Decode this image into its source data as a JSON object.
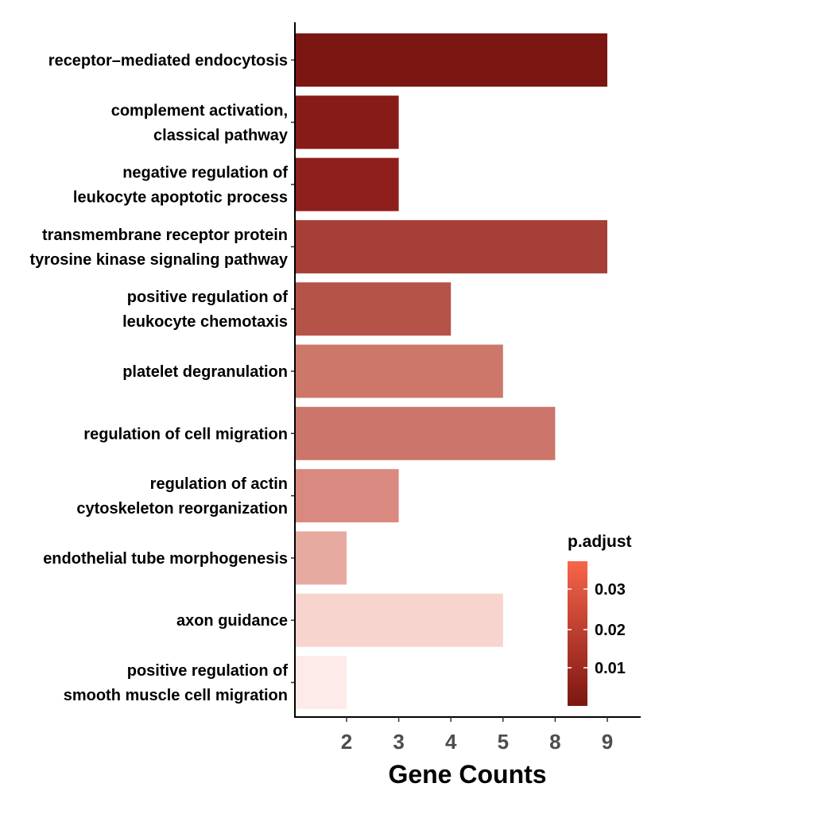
{
  "chart_data": {
    "type": "bar",
    "orientation": "horizontal",
    "xlabel": "Gene Counts",
    "ylabel": "",
    "x_tick_labels": [
      "2",
      "3",
      "4",
      "5",
      "8",
      "9"
    ],
    "categories": [
      [
        "receptor–mediated endocytosis"
      ],
      [
        "complement activation,",
        "classical pathway"
      ],
      [
        "negative regulation of",
        "leukocyte apoptotic process"
      ],
      [
        "transmembrane receptor protein",
        "tyrosine kinase signaling pathway"
      ],
      [
        "positive regulation of",
        "leukocyte chemotaxis"
      ],
      [
        "platelet degranulation"
      ],
      [
        "regulation of cell migration"
      ],
      [
        "regulation of actin",
        "cytoskeleton reorganization"
      ],
      [
        "endothelial tube morphogenesis"
      ],
      [
        "axon guidance"
      ],
      [
        "positive regulation of",
        "smooth muscle cell migration"
      ]
    ],
    "values": [
      9,
      3,
      3,
      9,
      4,
      5,
      8,
      3,
      2,
      5,
      2
    ],
    "bar_colors": [
      "#7c1612",
      "#871b18",
      "#8f1f1c",
      "#a53f37",
      "#b65349",
      "#cd776b",
      "#cc756a",
      "#d98980",
      "#e7aaa1",
      "#f8d4ce",
      "#fcebe8"
    ],
    "legend": {
      "title": "p.adjust",
      "labels": [
        "0.03",
        "0.02",
        "0.01"
      ],
      "color_low": "#7c1612",
      "color_high": "#f8654a",
      "placement": "bottom-right"
    },
    "grid": false
  }
}
